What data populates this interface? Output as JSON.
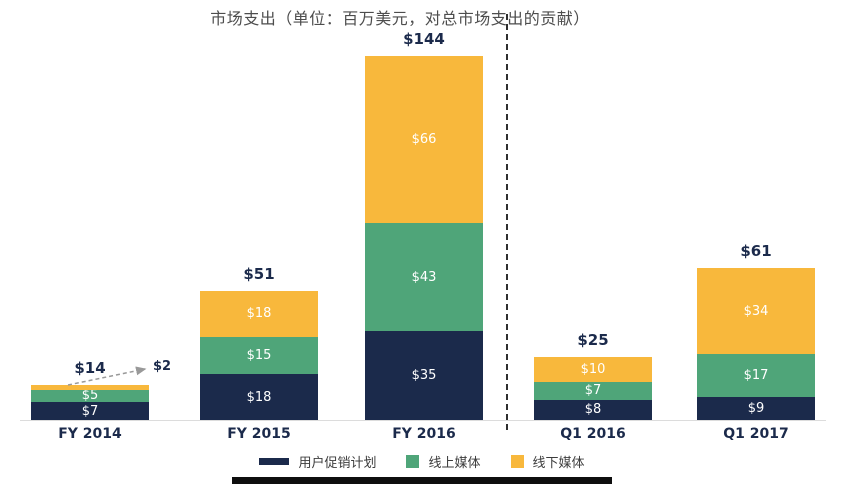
{
  "chart_data": {
    "type": "bar",
    "stacked": true,
    "title": "市场支出（单位：百万美元，对总市场支出的贡献）",
    "categories": [
      "FY 2014",
      "FY 2015",
      "FY 2016",
      "Q1 2016",
      "Q1 2017"
    ],
    "series": [
      {
        "name": "用户促销计划",
        "color": "#1b2a4b",
        "values": [
          7,
          18,
          35,
          8,
          9
        ]
      },
      {
        "name": "线上媒体",
        "color": "#4fa579",
        "values": [
          5,
          15,
          43,
          7,
          17
        ]
      },
      {
        "name": "线下媒体",
        "color": "#f8b83c",
        "values": [
          2,
          18,
          66,
          10,
          34
        ]
      }
    ],
    "totals": [
      14,
      51,
      144,
      25,
      61
    ],
    "totals_display": [
      "$14",
      "$51",
      "$144",
      "$25",
      "$61"
    ],
    "value_prefix": "$",
    "annotation": {
      "text": "$2",
      "category": "FY 2014",
      "series": "线下媒体"
    },
    "separator_after_index": 2,
    "ylim": [
      0,
      144
    ],
    "grid": false,
    "legend_position": "bottom"
  },
  "colors": {
    "total_label": "#1b2a4b",
    "segment_label": "#ffffff",
    "axis_line": "#dcdcdc",
    "title_text": "#4d4d4d",
    "annotation_arrow": "#999999"
  }
}
